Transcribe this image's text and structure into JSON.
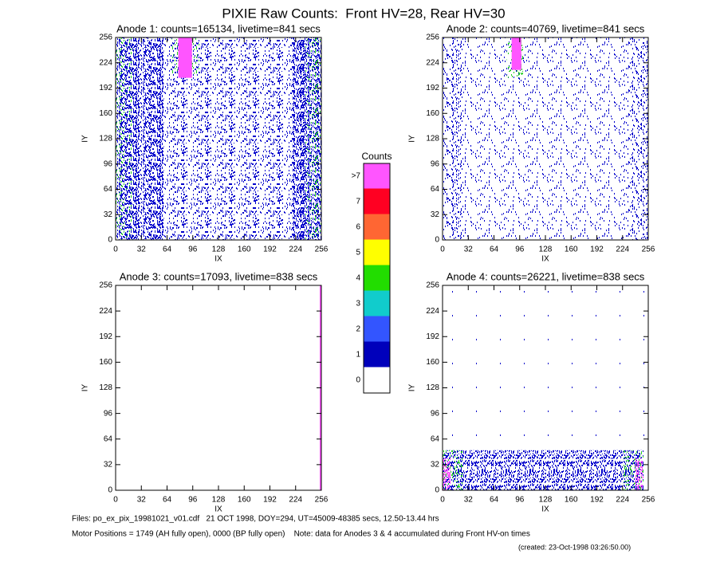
{
  "title": "PIXIE Raw Counts:  Front HV=28, Rear HV=30",
  "chart_data": [
    {
      "type": "heatmap",
      "title": "Anode 1: counts=165134, livetime=841 secs",
      "xlabel": "IX",
      "ylabel": "IY",
      "xlim": [
        0,
        256
      ],
      "ylim": [
        0,
        256
      ],
      "xticks": [
        0,
        32,
        64,
        96,
        128,
        160,
        192,
        224,
        256
      ],
      "yticks": [
        0,
        32,
        64,
        96,
        128,
        160,
        192,
        224,
        256
      ],
      "regions": [
        {
          "x": [
            0,
            256
          ],
          "y": [
            0,
            256
          ],
          "density": 0.18,
          "color": "#0000cc"
        },
        {
          "x": [
            0,
            60
          ],
          "y": [
            0,
            256
          ],
          "density": 0.3,
          "color": "#0000cc"
        },
        {
          "x": [
            220,
            256
          ],
          "y": [
            0,
            256
          ],
          "density": 0.35,
          "color": "#0000cc"
        },
        {
          "x": [
            0,
            20
          ],
          "y": [
            0,
            256
          ],
          "density": 0.08,
          "color": "#22cc22"
        },
        {
          "x": [
            236,
            256
          ],
          "y": [
            0,
            256
          ],
          "density": 0.08,
          "color": "#22cc22"
        },
        {
          "x": [
            70,
            105
          ],
          "y": [
            210,
            256
          ],
          "density": 0.15,
          "color": "#22cc22"
        },
        {
          "x": [
            78,
            95
          ],
          "y": [
            205,
            256
          ],
          "density": 1,
          "color": "#ff55ff"
        }
      ]
    },
    {
      "type": "heatmap",
      "title": "Anode 2: counts=40769, livetime=841 secs",
      "xlabel": "IX",
      "ylabel": "IY",
      "xlim": [
        0,
        256
      ],
      "ylim": [
        0,
        256
      ],
      "xticks": [
        0,
        32,
        64,
        96,
        128,
        160,
        192,
        224,
        256
      ],
      "yticks": [
        0,
        32,
        64,
        96,
        128,
        160,
        192,
        224,
        256
      ],
      "regions": [
        {
          "x": [
            0,
            256
          ],
          "y": [
            0,
            256
          ],
          "density": 0.07,
          "color": "#0000cc"
        },
        {
          "x": [
            0,
            25
          ],
          "y": [
            0,
            256
          ],
          "density": 0.1,
          "color": "#0000cc"
        },
        {
          "x": [
            230,
            256
          ],
          "y": [
            0,
            256
          ],
          "density": 0.1,
          "color": "#0000cc"
        },
        {
          "x": [
            80,
            102
          ],
          "y": [
            205,
            256
          ],
          "density": 0.15,
          "color": "#22cc22"
        },
        {
          "x": [
            86,
            98
          ],
          "y": [
            215,
            256
          ],
          "density": 1,
          "color": "#ff55ff"
        }
      ]
    },
    {
      "type": "heatmap",
      "title": "Anode 3: counts=17093, livetime=838 secs",
      "xlabel": "IX",
      "ylabel": "IY",
      "xlim": [
        0,
        256
      ],
      "ylim": [
        0,
        256
      ],
      "xticks": [
        0,
        32,
        64,
        96,
        128,
        160,
        192,
        224,
        256
      ],
      "yticks": [
        0,
        32,
        64,
        96,
        128,
        160,
        192,
        224,
        256
      ],
      "regions": [
        {
          "x": [
            254,
            256
          ],
          "y": [
            0,
            256
          ],
          "density": 1,
          "color": "#ff55ff"
        }
      ]
    },
    {
      "type": "heatmap",
      "title": "Anode 4: counts=26221, livetime=838 secs",
      "xlabel": "IX",
      "ylabel": "IY",
      "xlim": [
        0,
        256
      ],
      "ylim": [
        0,
        256
      ],
      "xticks": [
        0,
        32,
        64,
        96,
        128,
        160,
        192,
        224,
        256
      ],
      "yticks": [
        0,
        32,
        64,
        96,
        128,
        160,
        192,
        224,
        256
      ],
      "regions": [
        {
          "x": [
            0,
            256
          ],
          "y": [
            50,
            256
          ],
          "density": 0.003,
          "color": "#0000cc"
        },
        {
          "x": [
            0,
            250
          ],
          "y": [
            0,
            50
          ],
          "density": 0.4,
          "color": "#0000cc"
        },
        {
          "x": [
            0,
            25
          ],
          "y": [
            0,
            50
          ],
          "density": 0.15,
          "color": "#22cc22"
        },
        {
          "x": [
            225,
            250
          ],
          "y": [
            0,
            50
          ],
          "density": 0.15,
          "color": "#22cc22"
        },
        {
          "x": [
            0,
            10
          ],
          "y": [
            0,
            40
          ],
          "density": 0.6,
          "color": "#ff55ff"
        },
        {
          "x": [
            240,
            250
          ],
          "y": [
            0,
            40
          ],
          "density": 0.6,
          "color": "#ff55ff"
        }
      ]
    }
  ],
  "colorbar": {
    "title": "Counts",
    "labels": [
      ">7",
      7,
      6,
      5,
      4,
      3,
      2,
      1,
      0
    ],
    "colors": [
      "#ff55ff",
      "#ff0022",
      "#ff6633",
      "#ffff00",
      "#22dd00",
      "#11cccc",
      "#3355ff",
      "#0000bb",
      "#ffffff"
    ]
  },
  "footer": {
    "files": "Files: po_ex_pix_19981021_v01.cdf   21 OCT 1998, DOY=294, UT=45009-48385 secs, 12.50-13.44 hrs",
    "motor": "Motor Positions = 1749 (AH fully open), 0000 (BP fully open)    Note: data for Anodes 3 & 4 accumulated during Front HV-on times",
    "created": "(created: 23-Oct-1998 03:26:50.00)"
  }
}
